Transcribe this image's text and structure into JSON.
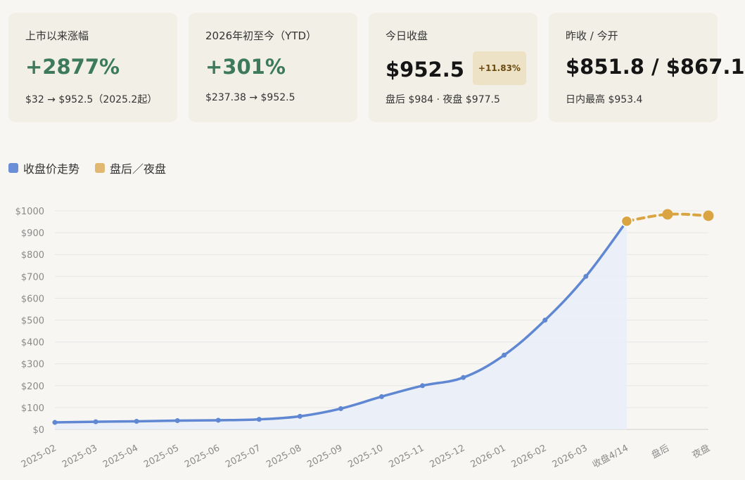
{
  "cards": [
    {
      "label": "上市以来涨幅",
      "main": "+2877%",
      "sub": "$32 → $952.5（2025.2起）"
    },
    {
      "label": "2026年初至今（YTD）",
      "main": "+301%",
      "sub": "$237.38 → $952.5"
    },
    {
      "label": "今日收盘",
      "main": "$952.5",
      "badge": "+11.83%",
      "sub": "盘后 $984 · 夜盘 $977.5"
    },
    {
      "label": "昨收 / 今开",
      "main": "$851.8 / $867.1",
      "sub": "日内最高 $953.4"
    }
  ],
  "legend": [
    {
      "label": "收盘价走势",
      "color": "#6a8fd6"
    },
    {
      "label": "盘后／夜盘",
      "color": "#e0b872"
    }
  ],
  "colors": {
    "positive": "#3d7a5c",
    "main_line": "#5f87d2",
    "extended_line": "#d9a441",
    "fill": "#e9edf8"
  },
  "chart_data": {
    "type": "line",
    "categories": [
      "2025-02",
      "2025-03",
      "2025-04",
      "2025-05",
      "2025-06",
      "2025-07",
      "2025-08",
      "2025-09",
      "2025-10",
      "2025-11",
      "2025-12",
      "2026-01",
      "2026-02",
      "2026-03",
      "收盘4/14",
      "盘后",
      "夜盘"
    ],
    "series": [
      {
        "name": "收盘价走势",
        "values": [
          32,
          35,
          37,
          40,
          42,
          46,
          60,
          95,
          150,
          200,
          237.38,
          340,
          500,
          700,
          952.5,
          null,
          null
        ]
      },
      {
        "name": "盘后／夜盘",
        "values": [
          null,
          null,
          null,
          null,
          null,
          null,
          null,
          null,
          null,
          null,
          null,
          null,
          null,
          null,
          952.5,
          984,
          977.5
        ]
      }
    ],
    "yticks": [
      "$0",
      "$100",
      "$200",
      "$300",
      "$400",
      "$500",
      "$600",
      "$700",
      "$800",
      "$900",
      "$1000"
    ],
    "ylim": [
      0,
      1000
    ],
    "grid": true,
    "legend_position": "top-left"
  }
}
